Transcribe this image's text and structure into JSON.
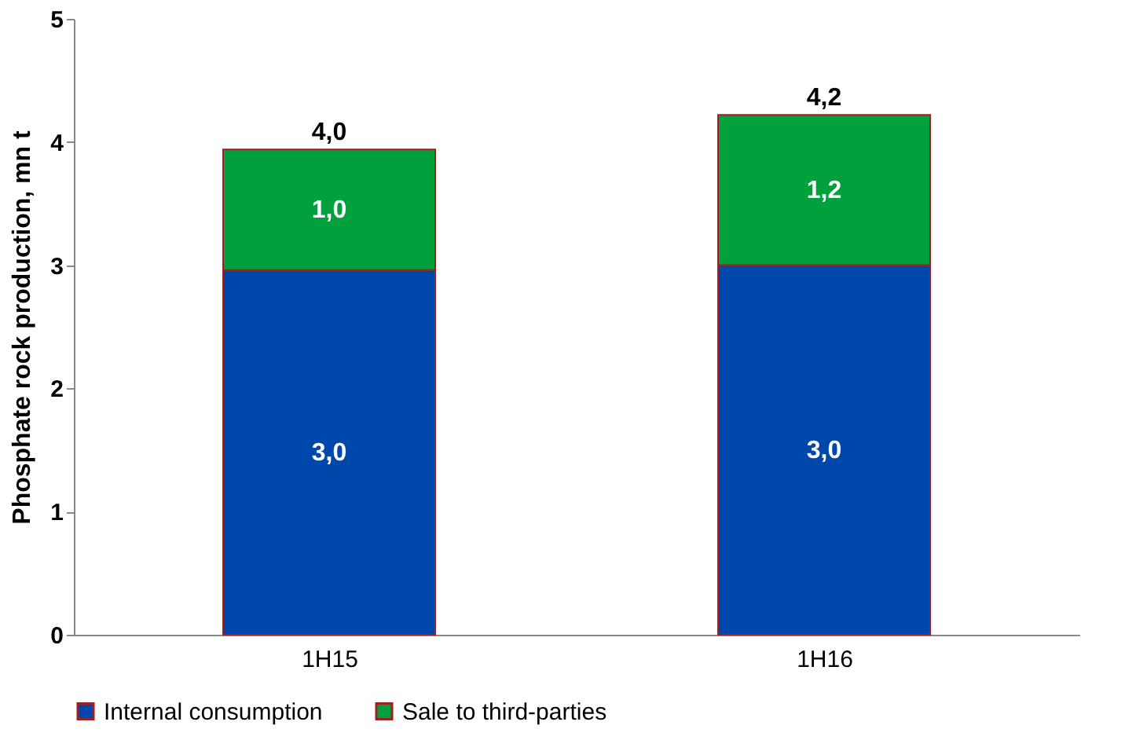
{
  "chart_data": {
    "type": "bar",
    "stacked": true,
    "ylabel": "Phosphate rock production, mn t",
    "categories": [
      "1H15",
      "1H16"
    ],
    "series": [
      {
        "name": "Internal consumption",
        "color": "#0047ab",
        "values": [
          2.96,
          3.0
        ],
        "value_labels": [
          "3,0",
          "3,0"
        ]
      },
      {
        "name": "Sale to third-parties",
        "color": "#00a03c",
        "values": [
          0.98,
          1.22
        ],
        "value_labels": [
          "1,0",
          "1,2"
        ]
      }
    ],
    "totals": [
      "4,0",
      "4,2"
    ],
    "ylim": [
      0,
      5
    ],
    "yticks": [
      0,
      1,
      2,
      3,
      4,
      5
    ],
    "grid": false,
    "legend": "bottom"
  }
}
